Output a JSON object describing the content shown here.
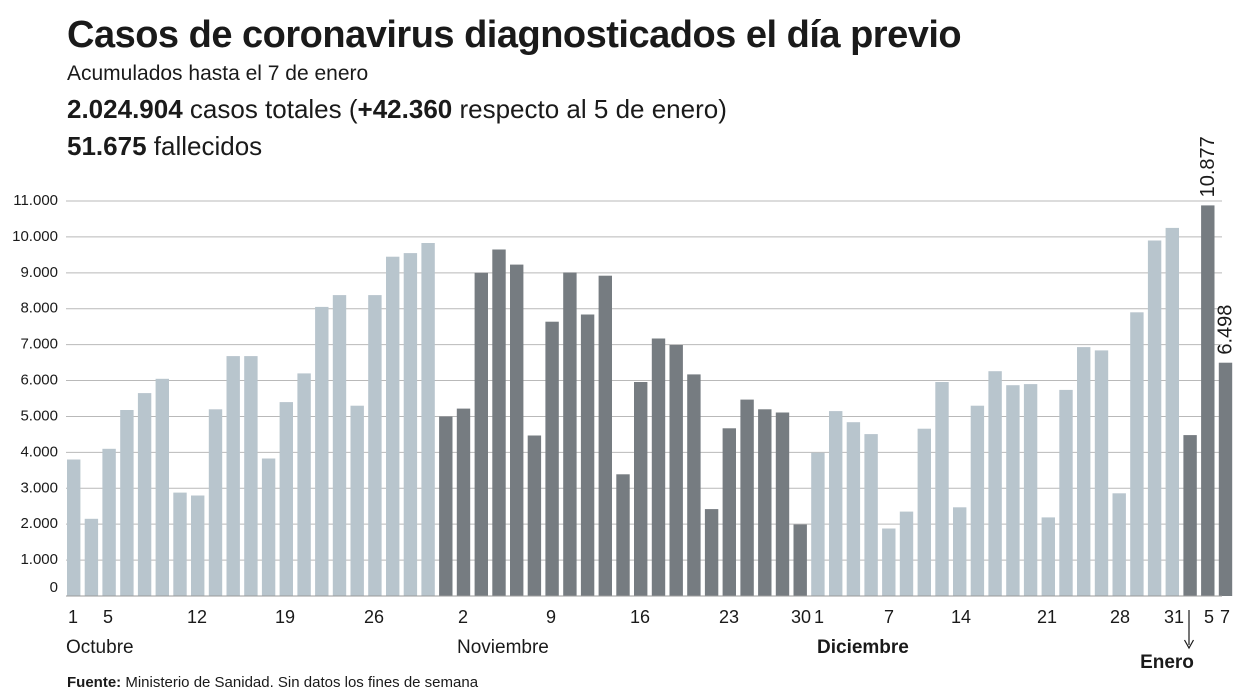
{
  "header": {
    "title": "Casos de coronavirus diagnosticados el día previo",
    "subtitle": "Acumulados hasta el 7 de enero",
    "total_value": "2.024.904",
    "total_text": " casos totales (",
    "increase_value": "+42.360",
    "increase_text": " respecto al 5 de enero)",
    "deaths_value": "51.675",
    "deaths_text": " fallecidos"
  },
  "footer": {
    "source_label": "Fuente:",
    "source_text": " Ministerio de Sanidad. Sin datos los fines de semana"
  },
  "colors": {
    "light_bar": "#b8c5cd",
    "dark_bar": "#767c81",
    "grid": "#b9b9b9"
  },
  "chart_data": {
    "type": "bar",
    "title": "Casos de coronavirus diagnosticados el día previo",
    "ylim": [
      0,
      11000
    ],
    "yticks": [
      "0",
      "1.000",
      "2.000",
      "3.000",
      "4.000",
      "5.000",
      "6.000",
      "7.000",
      "8.000",
      "9.000",
      "10.000",
      "11.000"
    ],
    "ytick_values": [
      0,
      1000,
      2000,
      3000,
      4000,
      5000,
      6000,
      7000,
      8000,
      9000,
      10000,
      11000
    ],
    "series": [
      {
        "name": "Octubre",
        "shade": "light",
        "values": [
          3800,
          2150,
          4100,
          5180,
          5650,
          6050,
          2880,
          2800,
          5200,
          6680,
          6680,
          3830,
          5400,
          6200,
          8050,
          8380,
          5300,
          8380,
          9450,
          9550,
          9830
        ]
      },
      {
        "name": "Noviembre",
        "shade": "dark",
        "values": [
          5000,
          5220,
          9000,
          9650,
          9230,
          4470,
          7640,
          9010,
          7840,
          8920,
          3390,
          5960,
          7170,
          6990,
          6170,
          2420,
          4670,
          5470,
          5200,
          5110,
          1990
        ]
      },
      {
        "name": "Diciembre",
        "shade": "light",
        "values": [
          3990,
          5150,
          4840,
          4510,
          1880,
          2350,
          4660,
          5960,
          2470,
          5300,
          6260,
          5870,
          5900,
          2190,
          5740,
          6930,
          6840,
          2860,
          7900,
          9900,
          10250
        ]
      },
      {
        "name": "Enero",
        "shade": "dark",
        "values": [
          4480,
          10877,
          6498
        ]
      }
    ],
    "data_labels": [
      "10.877",
      "6.498"
    ],
    "x_tick_labels": [
      "1",
      "5",
      "12",
      "19",
      "26",
      "2",
      "9",
      "16",
      "23",
      "30",
      "1",
      "7",
      "14",
      "21",
      "28",
      "31",
      "5",
      "7"
    ],
    "month_labels": [
      "Octubre",
      "Noviembre",
      "Diciembre",
      "Enero"
    ]
  }
}
